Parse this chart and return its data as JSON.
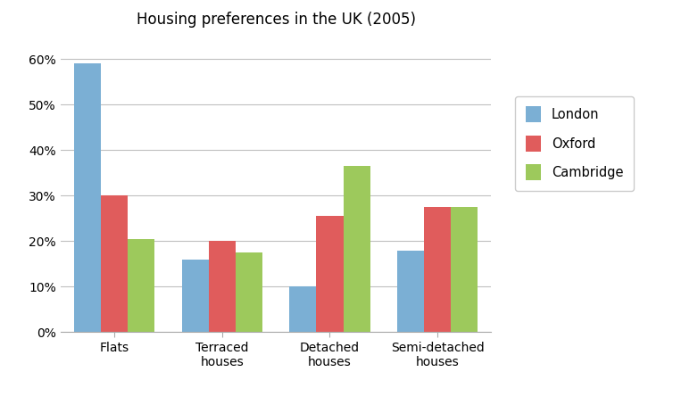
{
  "title": "Housing preferences in the UK (2005)",
  "categories": [
    "Flats",
    "Terraced\nhouses",
    "Detached\nhouses",
    "Semi-detached\nhouses"
  ],
  "series": [
    {
      "name": "London",
      "color": "#7bafd4",
      "values": [
        59,
        16,
        10,
        18
      ]
    },
    {
      "name": "Oxford",
      "color": "#e05c5c",
      "values": [
        30,
        20,
        25.5,
        27.5
      ]
    },
    {
      "name": "Cambridge",
      "color": "#9dc95c",
      "values": [
        20.5,
        17.5,
        36.5,
        27.5
      ]
    }
  ],
  "ylim": [
    0,
    65
  ],
  "yticks": [
    0,
    10,
    20,
    30,
    40,
    50,
    60
  ],
  "ytick_labels": [
    "0%",
    "10%",
    "20%",
    "30%",
    "40%",
    "50%",
    "60%"
  ],
  "bar_width": 0.25,
  "background_color": "#ffffff",
  "grid_color": "#c0c0c0",
  "title_fontsize": 12,
  "tick_fontsize": 10,
  "legend_fontsize": 10.5
}
